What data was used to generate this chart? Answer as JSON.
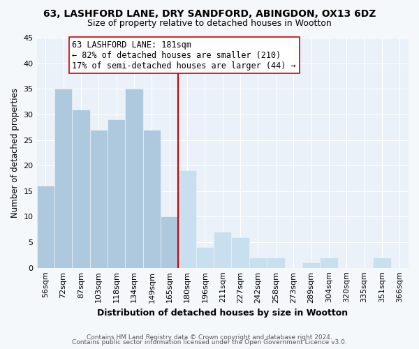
{
  "title": "63, LASHFORD LANE, DRY SANDFORD, ABINGDON, OX13 6DZ",
  "subtitle": "Size of property relative to detached houses in Wootton",
  "xlabel": "Distribution of detached houses by size in Wootton",
  "ylabel": "Number of detached properties",
  "bar_labels": [
    "56sqm",
    "72sqm",
    "87sqm",
    "103sqm",
    "118sqm",
    "134sqm",
    "149sqm",
    "165sqm",
    "180sqm",
    "196sqm",
    "211sqm",
    "227sqm",
    "242sqm",
    "258sqm",
    "273sqm",
    "289sqm",
    "304sqm",
    "320sqm",
    "335sqm",
    "351sqm",
    "366sqm"
  ],
  "bar_heights": [
    16,
    35,
    31,
    27,
    29,
    35,
    27,
    10,
    19,
    4,
    7,
    6,
    2,
    2,
    0,
    1,
    2,
    0,
    0,
    2,
    0
  ],
  "bar_color_left": "#aec9de",
  "bar_color_right": "#c8dff0",
  "vline_idx": 8,
  "vline_color": "#cc0000",
  "annotation_title": "63 LASHFORD LANE: 181sqm",
  "annotation_line1": "← 82% of detached houses are smaller (210)",
  "annotation_line2": "17% of semi-detached houses are larger (44) →",
  "ylim": [
    0,
    45
  ],
  "footnote1": "Contains HM Land Registry data © Crown copyright and database right 2024.",
  "footnote2": "Contains public sector information licensed under the Open Government Licence v3.0.",
  "fig_facecolor": "#f5f8fb",
  "plot_facecolor": "#eaf1f8",
  "grid_color": "#ffffff",
  "title_fontsize": 10,
  "subtitle_fontsize": 9
}
